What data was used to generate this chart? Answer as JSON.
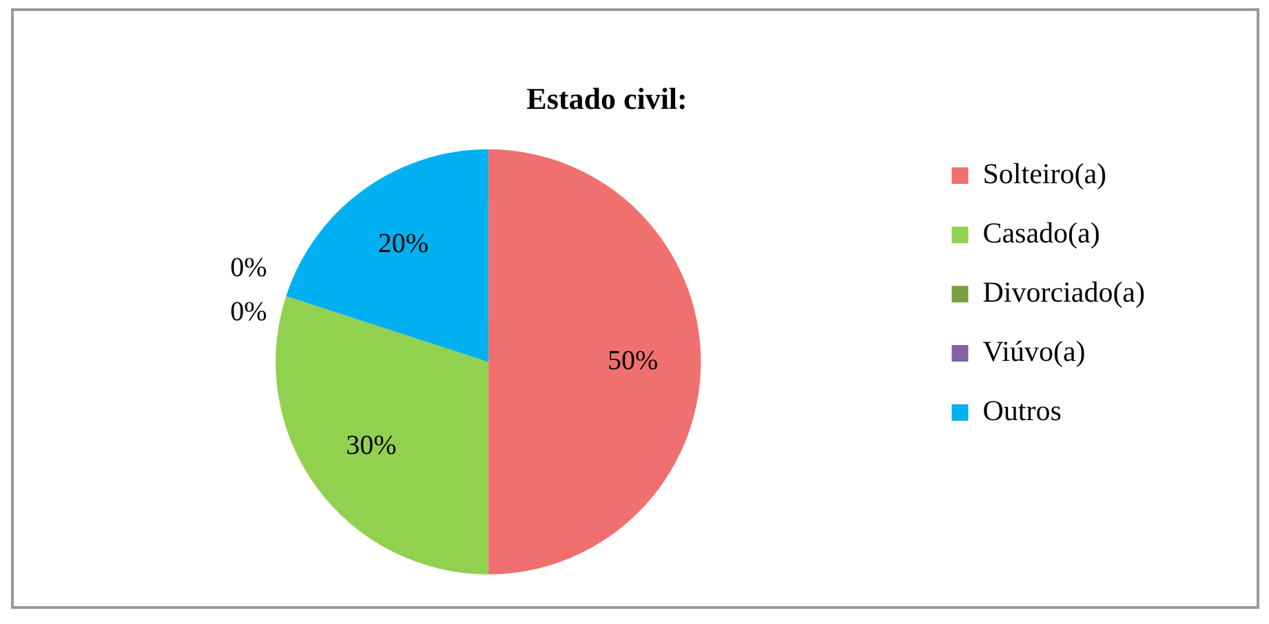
{
  "chart_data": {
    "type": "pie",
    "title": "Estado civil:",
    "categories": [
      "Solteiro(a)",
      "Casado(a)",
      "Divorciado(a)",
      "Viúvo(a)",
      "Outros"
    ],
    "values": [
      50,
      30,
      0,
      0,
      20
    ],
    "colors": [
      "#f07070",
      "#92d050",
      "#77a040",
      "#8064a2",
      "#00b0f0"
    ],
    "value_labels": [
      "50%",
      "30%",
      "0%",
      "0%",
      "20%"
    ],
    "legend": "right"
  }
}
